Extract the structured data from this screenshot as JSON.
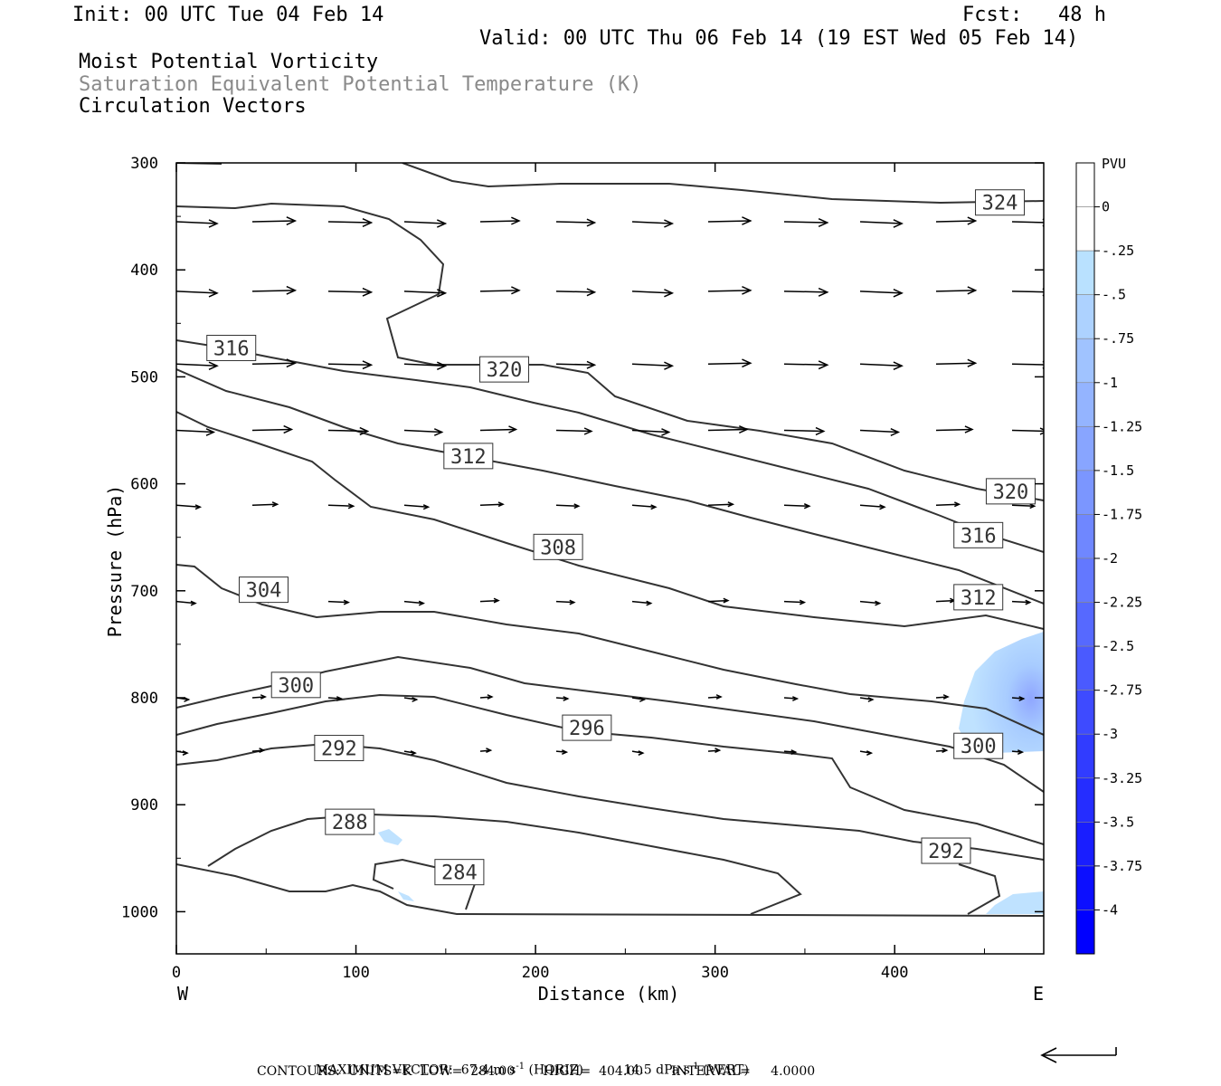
{
  "header": {
    "init": "Init: 00 UTC Tue 04 Feb 14",
    "fcst": "Fcst:   48 h",
    "valid": "Valid: 00 UTC Thu 06 Feb 14 (19 EST Wed 05 Feb 14)",
    "field1": "Moist Potential Vorticity",
    "field2": "Saturation Equivalent Potential Temperature (K)",
    "field3": "Circulation Vectors"
  },
  "footer": {
    "maxvec_label": "MAXIMUM VECTOR:",
    "horiz_value": "67.4",
    "horiz_unit": "m s",
    "horiz_tag": "(HORIZ)",
    "vert_value": "14.5",
    "vert_unit": "dPa s",
    "vert_tag": "(VERT)",
    "exponent": "-1",
    "contours": "CONTOURS:  UNITS=K  LOW=  284.00       HIGH=  404.00       INTERVAL=     4.0000"
  },
  "chart_data": {
    "type": "cross-section",
    "xlabel": "Distance (km)",
    "ylabel": "Pressure (hPa)",
    "x_ticks": [
      "0",
      "100",
      "200",
      "300",
      "400"
    ],
    "y_ticks": [
      "300",
      "400",
      "500",
      "600",
      "700",
      "800",
      "900",
      "1000"
    ],
    "x_range": [
      0,
      483
    ],
    "y_range": [
      300,
      1040
    ],
    "west_label": "W",
    "east_label": "E",
    "colorbar": {
      "unit": "PVU",
      "labels": [
        "0",
        "-.25",
        "-.5",
        "-.75",
        "-1",
        "-1.25",
        "-1.5",
        "-1.75",
        "-2",
        "-2.25",
        "-2.5",
        "-2.75",
        "-3",
        "-3.25",
        "-3.5",
        "-3.75",
        "-4"
      ]
    },
    "contour_labels": [
      {
        "value": "324",
        "x": 446,
        "p": 337
      },
      {
        "value": "320",
        "x": 170,
        "p": 493
      },
      {
        "value": "320",
        "x": 452,
        "p": 607
      },
      {
        "value": "316",
        "x": 18,
        "p": 473
      },
      {
        "value": "316",
        "x": 434,
        "p": 648
      },
      {
        "value": "312",
        "x": 150,
        "p": 574
      },
      {
        "value": "312",
        "x": 434,
        "p": 706
      },
      {
        "value": "308",
        "x": 200,
        "p": 659
      },
      {
        "value": "304",
        "x": 36,
        "p": 699
      },
      {
        "value": "300",
        "x": 54,
        "p": 788
      },
      {
        "value": "300",
        "x": 434,
        "p": 845
      },
      {
        "value": "296",
        "x": 216,
        "p": 828
      },
      {
        "value": "292",
        "x": 78,
        "p": 847
      },
      {
        "value": "292",
        "x": 416,
        "p": 943
      },
      {
        "value": "288",
        "x": 84,
        "p": 916
      },
      {
        "value": "284",
        "x": 145,
        "p": 963
      }
    ],
    "vector_rows": [
      {
        "p": 355,
        "len": 0.6
      },
      {
        "p": 420,
        "len": 0.6
      },
      {
        "p": 488,
        "len": 0.6
      },
      {
        "p": 550,
        "len": 0.55
      },
      {
        "p": 620,
        "len": 0.35
      },
      {
        "p": 710,
        "len": 0.28
      },
      {
        "p": 800,
        "len": 0.18
      },
      {
        "p": 850,
        "len": 0.16
      }
    ],
    "colors": {
      "pv_light": "#b3dcff",
      "pv_mid": "#8fb8ff",
      "contour": "#333333",
      "bar_dark": "#0000ff"
    }
  }
}
